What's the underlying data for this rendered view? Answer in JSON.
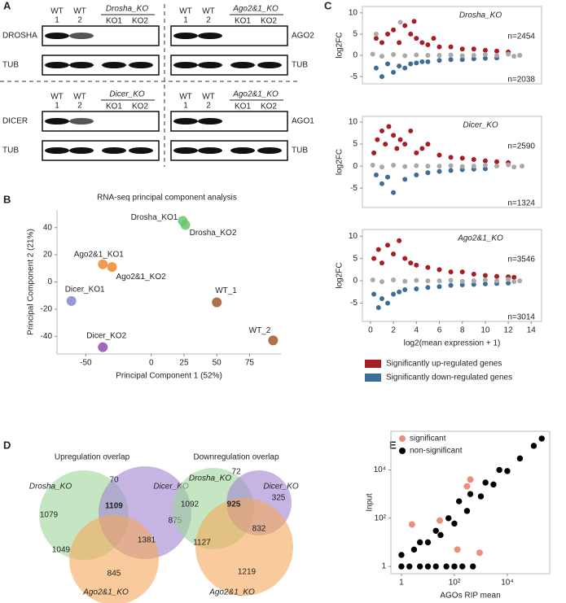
{
  "panel_labels": [
    "A",
    "B",
    "C",
    "D",
    "E"
  ],
  "blots": [
    {
      "protein": "DROSHA",
      "loading": "TUB",
      "lanes": [
        [
          "WT",
          "1"
        ],
        [
          "WT",
          "2"
        ]
      ],
      "ko_group": "Drosha_KO",
      "ko_lanes": [
        "KO1",
        "KO2"
      ]
    },
    {
      "protein": "AGO2",
      "loading": "TUB",
      "lanes": [
        [
          "WT",
          "1"
        ],
        [
          "WT",
          "2"
        ]
      ],
      "ko_group": "Ago2&1_KO",
      "ko_lanes": [
        "KO1",
        "KO2"
      ]
    },
    {
      "protein": "DICER",
      "loading": "TUB",
      "lanes": [
        [
          "WT",
          "1"
        ],
        [
          "WT",
          "2"
        ]
      ],
      "ko_group": "Dicer_KO",
      "ko_lanes": [
        "KO1",
        "KO2"
      ]
    },
    {
      "protein": "AGO1",
      "loading": "TUB",
      "lanes": [
        [
          "WT",
          "1"
        ],
        [
          "WT",
          "2"
        ]
      ],
      "ko_group": "Ago2&1_KO",
      "ko_lanes": [
        "KO1",
        "KO2"
      ]
    }
  ],
  "chart_data": [
    {
      "type": "scatter",
      "title": "RNA-seq principal component analysis",
      "x_label": "Principal Component 1 (52%)",
      "y_label": "Principal Component 2 (21%)",
      "labels": [
        "Drosha_KO1",
        "Drosha_KO2",
        "Ago2&1_KO1",
        "Ago2&1_KO2",
        "Dicer_KO1",
        "Dicer_KO2",
        "WT_1",
        "WT_2"
      ],
      "x": [
        24,
        26,
        -37,
        -30,
        -61,
        -37,
        50,
        93
      ],
      "values": [
        45,
        42,
        13,
        11,
        -14,
        -48,
        -15,
        -43
      ],
      "colors": [
        "#6cc46f",
        "#6cc46f",
        "#f08a30",
        "#f08a30",
        "#7f86d4",
        "#8e4bb0",
        "#a0582a",
        "#a0582a"
      ],
      "xlim": [
        -72,
        99
      ],
      "ylim": [
        -53,
        53
      ],
      "xticks": [
        -50,
        0,
        25,
        50,
        75
      ],
      "yticks": [
        -40,
        -20,
        0,
        20,
        40
      ]
    },
    {
      "type": "scatter",
      "title": "Drosha_KO",
      "y_label": "log2FC",
      "xlim": [
        -0.7,
        14.9
      ],
      "ylim": [
        -6.7,
        11.5
      ],
      "yticks": [
        -5,
        0,
        5,
        10
      ],
      "series": [
        {
          "color": "#a81c23",
          "count_label": "n=2454",
          "x": [
            0.5,
            1,
            1.5,
            2,
            2.5,
            3,
            3.5,
            3.8,
            4,
            4.5,
            5,
            5.5,
            6,
            7,
            8,
            9,
            10,
            11,
            12
          ],
          "values": [
            4,
            3,
            5,
            6,
            3,
            7,
            5,
            8,
            4,
            3,
            2.5,
            4,
            2,
            2,
            1.5,
            1.5,
            1.2,
            1,
            0.8
          ]
        },
        {
          "color": "#3c6e9b",
          "count_label": "n=2038",
          "x": [
            0.5,
            1,
            1.5,
            2,
            2.5,
            3,
            3.5,
            4,
            4.5,
            5,
            6,
            7,
            8,
            9,
            10,
            11
          ],
          "values": [
            -3,
            -5,
            -2,
            -4,
            -2.5,
            -3,
            -2,
            -1.8,
            -1.5,
            -1.5,
            -1.2,
            -1,
            -1,
            -0.8,
            -0.7,
            -0.6
          ]
        },
        {
          "color": "#a9a9a9",
          "x": [
            0.2,
            0.5,
            1,
            2,
            2.6,
            3,
            4,
            5,
            6,
            7,
            8,
            9,
            10,
            11,
            12,
            12.5,
            13
          ],
          "values": [
            0.3,
            5,
            -0.2,
            0.2,
            7.8,
            -0.1,
            0.1,
            0,
            0,
            0.1,
            -0.1,
            0,
            0.2,
            0,
            0.3,
            -0.2,
            0
          ]
        }
      ]
    },
    {
      "type": "scatter",
      "title": "Dicer_KO",
      "y_label": "log2FC",
      "xlim": [
        -0.7,
        14.9
      ],
      "ylim": [
        -9.4,
        11.3
      ],
      "yticks": [
        -5,
        0,
        5,
        10
      ],
      "series": [
        {
          "color": "#a81c23",
          "count_label": "n=2590",
          "x": [
            0.3,
            0.6,
            1,
            1.3,
            1.6,
            2,
            2.3,
            2.6,
            3,
            3.5,
            4,
            4.5,
            5,
            6,
            7,
            8,
            9,
            10,
            11,
            12
          ],
          "values": [
            3,
            6,
            8,
            5,
            9,
            7,
            4,
            6,
            5,
            8,
            3,
            4,
            5,
            2.5,
            2,
            1.8,
            1.5,
            1.2,
            1,
            0.8
          ]
        },
        {
          "color": "#3c6e9b",
          "count_label": "n=1324",
          "x": [
            0.5,
            1,
            1.5,
            2,
            3,
            4,
            5,
            6,
            7,
            8,
            9,
            10
          ],
          "values": [
            -2,
            -4,
            -2.5,
            -6,
            -3,
            -2,
            -1.5,
            -1.2,
            -1,
            -0.8,
            -0.7,
            -0.6
          ]
        },
        {
          "color": "#a9a9a9",
          "x": [
            0.2,
            1,
            2,
            3,
            4,
            5,
            6,
            7,
            8,
            9,
            10,
            11,
            12,
            12.5,
            13.2
          ],
          "values": [
            0.2,
            -0.2,
            0.2,
            -0.1,
            0.1,
            0,
            0,
            0.1,
            -0.1,
            0,
            0.2,
            0,
            0.3,
            -0.2,
            0
          ]
        }
      ]
    },
    {
      "type": "scatter",
      "title": "Ago2&1_KO",
      "y_label": "log2FC",
      "x_label": "log2(mean expression + 1)",
      "xlim": [
        -0.7,
        14.9
      ],
      "ylim": [
        -9.1,
        11.5
      ],
      "xticks": [
        0,
        2,
        4,
        6,
        8,
        10,
        12,
        14
      ],
      "yticks": [
        -5,
        0,
        5,
        10
      ],
      "series": [
        {
          "color": "#a81c23",
          "count_label": "n=3546",
          "x": [
            0.3,
            0.7,
            1,
            1.5,
            2,
            2.5,
            3,
            3.5,
            4,
            5,
            6,
            7,
            8,
            9,
            10,
            11,
            12,
            12.5
          ],
          "values": [
            5,
            7,
            4,
            8,
            6,
            9,
            5,
            4,
            3.5,
            3,
            2.5,
            2,
            2,
            1.5,
            1.2,
            1,
            0.9,
            0.8
          ]
        },
        {
          "color": "#3c6e9b",
          "count_label": "n=3014",
          "x": [
            0.3,
            0.7,
            1,
            1.5,
            2,
            2.5,
            3,
            4,
            5,
            6,
            7,
            8,
            9,
            10,
            11,
            12
          ],
          "values": [
            -3,
            -6,
            -4,
            -5,
            -3,
            -2.5,
            -2,
            -1.8,
            -1.5,
            -1.3,
            -1,
            -0.9,
            -0.8,
            -0.7,
            -0.6,
            -0.5
          ]
        },
        {
          "color": "#a9a9a9",
          "x": [
            0.2,
            1,
            2,
            3,
            4,
            5,
            6,
            7,
            8,
            9,
            10,
            11,
            12,
            12.5,
            13
          ],
          "values": [
            0.2,
            -0.2,
            0.2,
            -0.1,
            0.1,
            0,
            0,
            0.1,
            -0.1,
            0,
            0.2,
            0,
            0.3,
            -0.2,
            0
          ]
        }
      ]
    },
    {
      "type": "scatter",
      "log_x": true,
      "log_y": true,
      "x_label": "AGOs RIP mean",
      "y_label": "Input",
      "xlim": [
        0.4,
        400000
      ],
      "ylim": [
        0.5,
        400000
      ],
      "xticks": [
        1,
        {
          "value": 100,
          "label": "10²"
        },
        {
          "value": 10000,
          "label": "10⁴"
        }
      ],
      "yticks": [
        1,
        {
          "value": 100,
          "label": "10²"
        },
        {
          "value": 10000,
          "label": "10⁴"
        }
      ],
      "series": [
        {
          "name": "significant",
          "color": "#e8907a",
          "x": [
            300,
            400,
            28,
            2.5,
            130,
            900
          ],
          "values": [
            2100,
            4000,
            80,
            55,
            5,
            3.7
          ]
        },
        {
          "name": "non-significant",
          "color": "#000000",
          "x": [
            1,
            2,
            5,
            10,
            20,
            50,
            100,
            200,
            500,
            1,
            3,
            10,
            30,
            100,
            300,
            1000,
            3000,
            10000,
            30000,
            100000,
            200000,
            5,
            20,
            60,
            150,
            400,
            1500,
            5000
          ],
          "values": [
            1,
            1,
            1,
            1,
            1,
            1,
            1,
            1,
            1,
            3,
            5,
            10,
            20,
            60,
            200,
            800,
            2500,
            9000,
            30000,
            100000,
            200000,
            10,
            30,
            100,
            500,
            1000,
            3000,
            10000
          ]
        }
      ]
    }
  ],
  "ma_legend": [
    {
      "label": "Significantly up-regulated genes",
      "color": "#a81c23"
    },
    {
      "label": "Significantly down-regulated genes",
      "color": "#3c6e9b"
    }
  ],
  "venns": [
    {
      "title": "Upregulation overlap",
      "sets": [
        {
          "label": "Drosha_KO",
          "color": "#9fd69a"
        },
        {
          "label": "Dicer_KO",
          "color": "#a084cf"
        },
        {
          "label": "Ago2&1_KO",
          "color": "#f5a95a"
        }
      ],
      "counts": [
        1079,
        70,
        875,
        1109,
        1049,
        1381,
        845
      ]
    },
    {
      "title": "Downregulation overlap",
      "sets": [
        {
          "label": "Drosha_KO",
          "color": "#9fd69a"
        },
        {
          "label": "Dicer_KO",
          "color": "#a084cf"
        },
        {
          "label": "Ago2&1_KO",
          "color": "#f5a95a"
        }
      ],
      "counts": [
        1092,
        72,
        325,
        925,
        1127,
        832,
        1219
      ]
    }
  ]
}
